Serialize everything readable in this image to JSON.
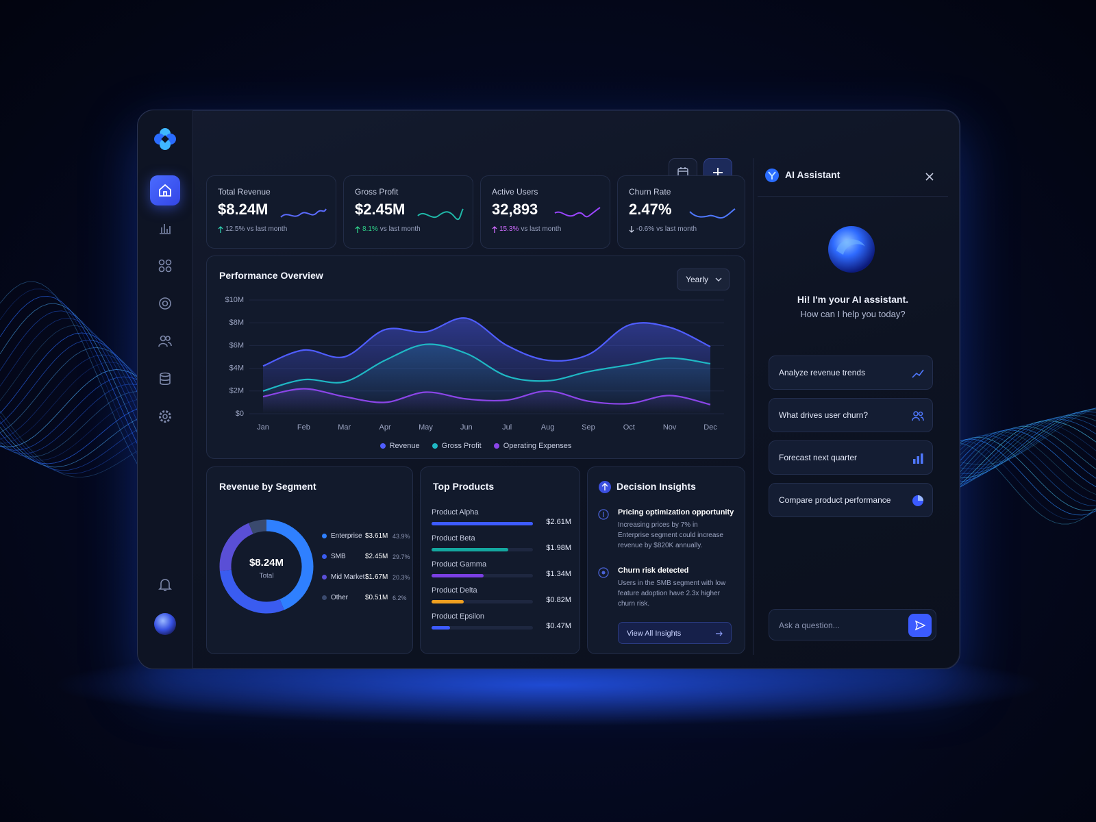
{
  "kpis": [
    {
      "title": "Total Revenue",
      "value": "$8.24M",
      "change": "12.5%",
      "change_note": "vs last month"
    },
    {
      "title": "Gross Profit",
      "value": "$2.45M",
      "change": "8.1%",
      "change_note": "vs last month"
    },
    {
      "title": "Active Users",
      "value": "32,893",
      "change": "15.3%",
      "change_note": "vs last month"
    },
    {
      "title": "Churn Rate",
      "value": "2.47%",
      "change": "-0.6%",
      "change_note": "vs last month"
    }
  ],
  "chart_data": [
    {
      "type": "line",
      "title": "Performance Overview",
      "period": "Yearly",
      "categories": [
        "Jan",
        "Feb",
        "Mar",
        "Apr",
        "May",
        "Jun",
        "Jul",
        "Aug",
        "Sep",
        "Oct",
        "Nov",
        "Dec"
      ],
      "series": [
        {
          "name": "Revenue",
          "color": "#4f5dff",
          "values": [
            4200000,
            5600000,
            5000000,
            7400000,
            7200000,
            8400000,
            6000000,
            4700000,
            5200000,
            7800000,
            7600000,
            5900000
          ]
        },
        {
          "name": "Gross Profit",
          "color": "#1fb8c4",
          "values": [
            2000000,
            3000000,
            2800000,
            4700000,
            6100000,
            5300000,
            3300000,
            2900000,
            3700000,
            4300000,
            4900000,
            4400000
          ]
        },
        {
          "name": "Operating Expenses",
          "color": "#8b45e8",
          "values": [
            1500000,
            2200000,
            1500000,
            1000000,
            1900000,
            1300000,
            1200000,
            2000000,
            1100000,
            900000,
            1600000,
            800000
          ]
        }
      ],
      "ylim": [
        0,
        10000000
      ],
      "yticks": [
        {
          "value": 0,
          "label": "$0"
        },
        {
          "value": 2000000,
          "label": "$2M"
        },
        {
          "value": 4000000,
          "label": "$4M"
        },
        {
          "value": 6000000,
          "label": "$6M"
        },
        {
          "value": 8000000,
          "label": "$8M"
        },
        {
          "value": 10000000,
          "label": "$10M"
        }
      ],
      "grid": true
    },
    {
      "type": "pie",
      "title": "Revenue by Segment",
      "center_value": "$8.24M",
      "center_label": "Total",
      "categories": [
        "Enterprise",
        "SMB",
        "Mid Market",
        "Other"
      ],
      "values": [
        43.9,
        29.7,
        20.3,
        6.2
      ],
      "value_labels": [
        "43.9%",
        "29.7%",
        "20.3%",
        "6.2%"
      ],
      "amounts": [
        3610000,
        2450000,
        1670000,
        510000
      ],
      "amount_labels": [
        "$3.61M",
        "$2.45M",
        "$1.67M",
        "$0.51M"
      ],
      "colors": [
        "#2f80ff",
        "#3a5cf0",
        "#5a4fd6",
        "#3a4a6e"
      ]
    },
    {
      "type": "bar",
      "title": "Top Products",
      "categories": [
        "Product Alpha",
        "Product Beta",
        "Product Gamma",
        "Product Delta",
        "Product Epsilon"
      ],
      "values": [
        2610000,
        1980000,
        1340000,
        820000,
        470000
      ],
      "value_labels": [
        "$2.61M",
        "$1.98M",
        "$1.34M",
        "$0.82M",
        "$0.47M"
      ],
      "colors": [
        "#3d5bff",
        "#14a8a0",
        "#7b3fe4",
        "#f0a020",
        "#3d5bff"
      ]
    }
  ],
  "insights": {
    "title": "Decision Insights",
    "items": [
      {
        "title": "Pricing optimization opportunity",
        "text": "Increasing prices by 7% in Enterprise segment could increase revenue by $820K annually."
      },
      {
        "title": "Churn risk detected",
        "text": "Users in the SMB segment with low feature adoption have 2.3x higher churn risk."
      }
    ],
    "button": "View All Insights"
  },
  "assistant": {
    "title": "AI Assistant",
    "greeting": "Hi! I'm your AI assistant.",
    "prompt": "How can I help you today?",
    "suggestions": [
      "Analyze revenue trends",
      "What drives user churn?",
      "Forecast next quarter",
      "Compare product performance"
    ],
    "input_placeholder": "Ask a question..."
  }
}
